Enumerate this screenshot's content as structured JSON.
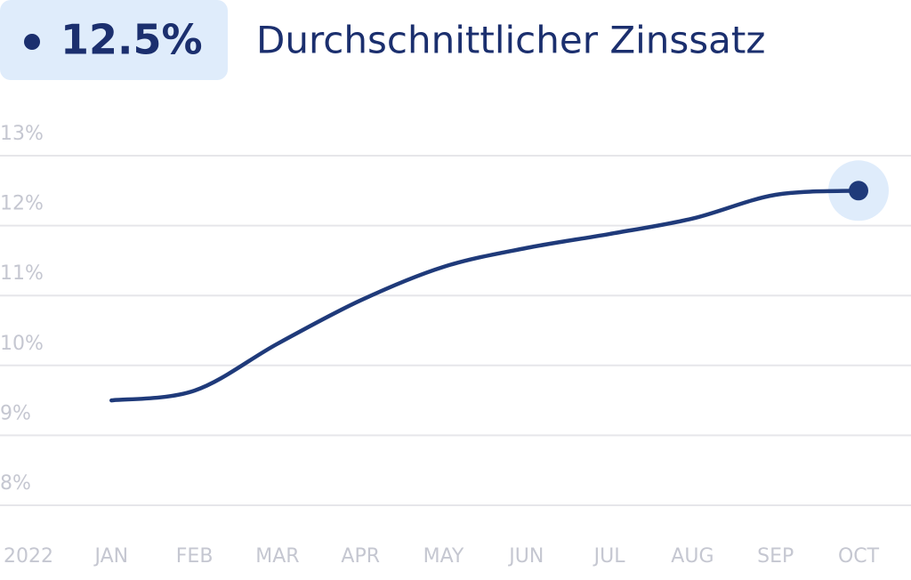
{
  "chart_data": {
    "type": "line",
    "title": "Durchschnittlicher Zinssatz",
    "categories": [
      "2022",
      "JAN",
      "FEB",
      "MAR",
      "APR",
      "MAY",
      "JUN",
      "JUL",
      "AUG",
      "SEP",
      "OCT"
    ],
    "values": [
      null,
      9.5,
      9.64,
      10.31,
      10.93,
      11.41,
      11.68,
      11.88,
      12.1,
      12.44,
      12.5
    ],
    "value_labels": [
      null,
      null,
      null,
      null,
      null,
      null,
      null,
      null,
      null,
      null,
      "12.5%"
    ],
    "color": "#1f3a7a",
    "ylim": [
      8,
      13
    ],
    "yticks": [
      {
        "value": 8,
        "label": "8%"
      },
      {
        "value": 9,
        "label": "9%"
      },
      {
        "value": 10,
        "label": "10%"
      },
      {
        "value": 11,
        "label": "11%"
      },
      {
        "value": 12,
        "label": "12%"
      },
      {
        "value": 13,
        "label": "13%"
      }
    ],
    "grid": true
  }
}
